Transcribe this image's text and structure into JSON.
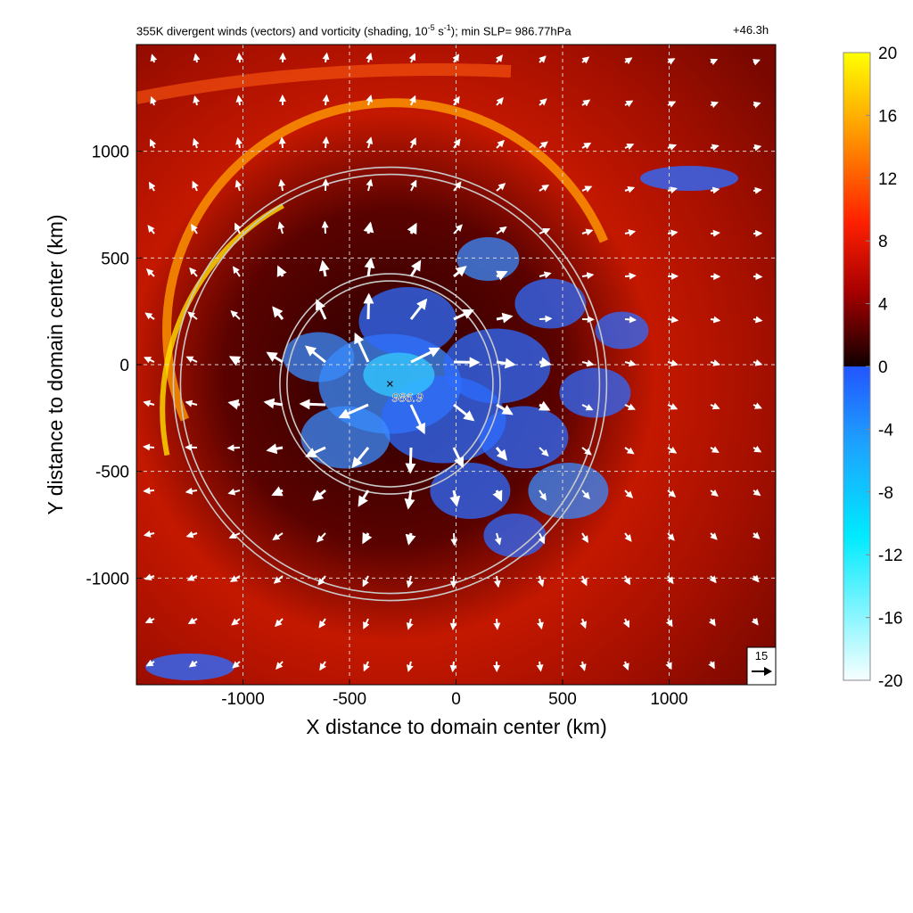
{
  "chart_data": {
    "type": "heatmap",
    "title_prefix": "355K divergent winds (vectors) and vorticity (shading, 10",
    "title_exp": "-5",
    "title_unit_mid": " s",
    "title_unit_exp": "-1",
    "title_suffix": "); min SLP= 986.77hPa",
    "forecast_time": "+46.3h",
    "xlabel": "X distance to domain center (km)",
    "ylabel": "Y distance to domain center (km)",
    "xlim": [
      -1500,
      1500
    ],
    "ylim": [
      -1500,
      1500
    ],
    "x_ticks": [
      -1000,
      -500,
      0,
      500,
      1000
    ],
    "y_ticks": [
      -1000,
      -500,
      0,
      500,
      1000
    ],
    "x_tick_labels": [
      "-1000",
      "-500",
      "0",
      "500",
      "1000"
    ],
    "y_tick_labels": [
      "-1000",
      "-500",
      "0",
      "500",
      "1000"
    ],
    "grid": true,
    "grid_style": "dashed",
    "colorbar": {
      "ticks": [
        20,
        16,
        12,
        8,
        4,
        0,
        -4,
        -8,
        -12,
        -16,
        -20
      ],
      "tick_labels": [
        "20",
        "16",
        "12",
        "8",
        "4",
        "0",
        "-4",
        "-8",
        "-12",
        "-16",
        "-20"
      ],
      "range": [
        -20,
        20
      ],
      "colors": {
        "positive_high": "#ffff00",
        "positive_mid": "#ff2a00",
        "positive_low": "#1a0000",
        "negative_low": "#3060ff",
        "negative_mid": "#00e5ff",
        "negative_high": "#f5ffff"
      }
    },
    "center_marker": {
      "x": -310,
      "y": -90,
      "label": "986.9"
    },
    "range_rings_km": [
      500,
      1000
    ],
    "reference_vector": {
      "label": "15"
    }
  }
}
